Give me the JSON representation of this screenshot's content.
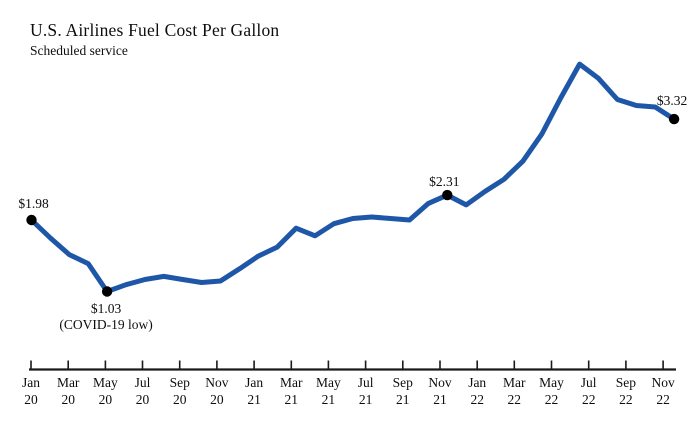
{
  "header": {
    "title": "U.S. Airlines Fuel Cost Per Gallon",
    "subtitle": "Scheduled service"
  },
  "chart_data": {
    "type": "line",
    "title": "U.S. Airlines Fuel Cost Per Gallon",
    "subtitle": "Scheduled service",
    "series_name": "Fuel cost per gallon (USD)",
    "x": [
      "Jan 20",
      "Feb 20",
      "Mar 20",
      "Apr 20",
      "May 20",
      "Jun 20",
      "Jul 20",
      "Aug 20",
      "Sep 20",
      "Oct 20",
      "Nov 20",
      "Dec 20",
      "Jan 21",
      "Feb 21",
      "Mar 21",
      "Apr 21",
      "May 21",
      "Jun 21",
      "Jul 21",
      "Aug 21",
      "Sep 21",
      "Oct 21",
      "Nov 21",
      "Dec 21",
      "Jan 22",
      "Feb 22",
      "Mar 22",
      "Apr 22",
      "May 22",
      "Jun 22",
      "Jul 22",
      "Aug 22",
      "Sep 22",
      "Oct 22",
      "Nov 22"
    ],
    "values": [
      1.98,
      1.74,
      1.52,
      1.4,
      1.03,
      1.12,
      1.19,
      1.23,
      1.19,
      1.15,
      1.17,
      1.33,
      1.5,
      1.62,
      1.87,
      1.77,
      1.93,
      2.0,
      2.02,
      2.0,
      1.98,
      2.2,
      2.31,
      2.18,
      2.36,
      2.52,
      2.76,
      3.12,
      3.6,
      4.05,
      3.86,
      3.58,
      3.5,
      3.48,
      3.32
    ],
    "x_tick_labels": [
      {
        "month": "Jan",
        "year": "20"
      },
      {
        "month": "Mar",
        "year": "20"
      },
      {
        "month": "May",
        "year": "20"
      },
      {
        "month": "Jul",
        "year": "20"
      },
      {
        "month": "Sep",
        "year": "20"
      },
      {
        "month": "Nov",
        "year": "20"
      },
      {
        "month": "Jan",
        "year": "21"
      },
      {
        "month": "Mar",
        "year": "21"
      },
      {
        "month": "May",
        "year": "21"
      },
      {
        "month": "Jul",
        "year": "21"
      },
      {
        "month": "Sep",
        "year": "21"
      },
      {
        "month": "Nov",
        "year": "21"
      },
      {
        "month": "Jan",
        "year": "22"
      },
      {
        "month": "Mar",
        "year": "22"
      },
      {
        "month": "May",
        "year": "22"
      },
      {
        "month": "Jul",
        "year": "22"
      },
      {
        "month": "Sep",
        "year": "22"
      },
      {
        "month": "Nov",
        "year": "22"
      }
    ],
    "annotations": [
      {
        "month": "Jan 20",
        "value": 1.98,
        "text": "$1.98",
        "placement": "above"
      },
      {
        "month": "May 20",
        "value": 1.03,
        "text": "$1.03",
        "note": "(COVID-19 low)",
        "placement": "below"
      },
      {
        "month": "Nov 21",
        "value": 2.31,
        "text": "$2.31",
        "placement": "above"
      },
      {
        "month": "Nov 22",
        "value": 3.32,
        "text": "$3.32",
        "placement": "above"
      }
    ],
    "line_color": "#1e57a8",
    "marker_color": "#000000",
    "axis_color": "#1a1a1a",
    "ylim": [
      1.03,
      4.07
    ],
    "grid": false,
    "legend": false,
    "y_axis_shown": false
  }
}
